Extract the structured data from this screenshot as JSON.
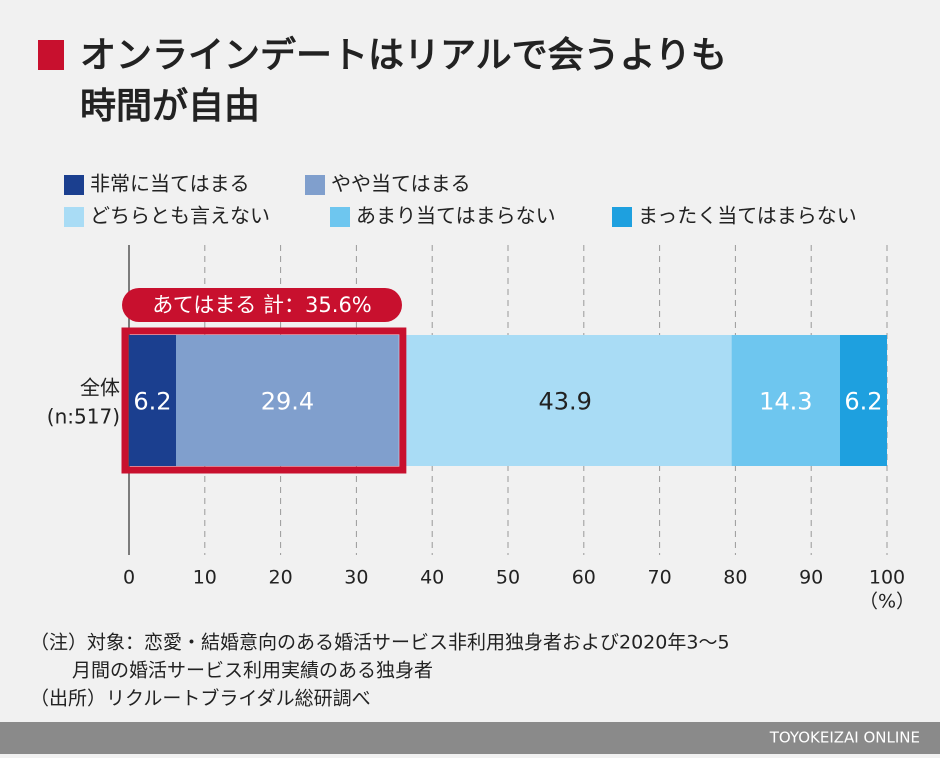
{
  "chart_data": {
    "type": "stacked_barh",
    "title": [
      "オンラインデートはリアルで会うよりも",
      "時間が自由"
    ],
    "categories": [
      "全体"
    ],
    "category_notes": [
      "(n:517)"
    ],
    "series": [
      {
        "name": "非常に当てはまる",
        "color": "#1b3f8f",
        "label_color": "#ffffff",
        "values": [
          6.2
        ]
      },
      {
        "name": "やや当てはまる",
        "color": "#809fcd",
        "label_color": "#ffffff",
        "values": [
          29.4
        ]
      },
      {
        "name": "どちらとも言えない",
        "color": "#a9dcf5",
        "label_color": "#222222",
        "values": [
          43.9
        ]
      },
      {
        "name": "あまり当てはまらない",
        "color": "#6ec6ef",
        "label_color": "#ffffff",
        "values": [
          14.3
        ]
      },
      {
        "name": "まったく当てはまらない",
        "color": "#1ea0df",
        "label_color": "#ffffff",
        "values": [
          6.2
        ]
      }
    ],
    "annotation": "あてはまる 計：35.6%",
    "xlim": [
      0,
      100
    ],
    "xticks": [
      0,
      10,
      20,
      30,
      40,
      50,
      60,
      70,
      80,
      90,
      100
    ],
    "x_unit": "（%）",
    "grid": true,
    "notes": [
      "（注）対象：恋愛・結婚意向のある婚活サービス非利用独身者および2020年3〜5",
      "月間の婚活サービス利用実績のある独身者",
      "（出所）リクルートブライダル総研調べ"
    ],
    "source": "TOYOKEIZAI ONLINE"
  }
}
